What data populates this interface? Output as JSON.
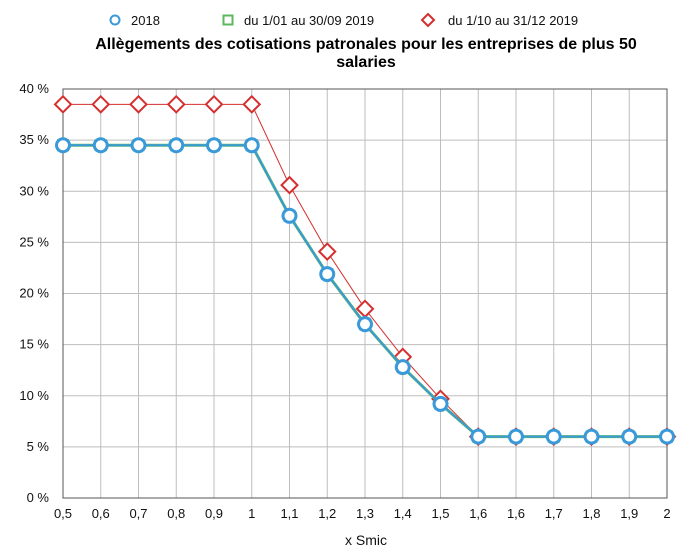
{
  "chart_data": {
    "type": "line",
    "title": "Allègements des cotisations patronales pour les entreprises de plus 50 salaries",
    "title_lines": [
      "Allègements des cotisations patronales pour les entreprises de plus 50",
      "salaries"
    ],
    "xlabel": "x Smic",
    "ylabel": "",
    "x": [
      0.5,
      0.6,
      0.7,
      0.8,
      0.9,
      1.0,
      1.1,
      1.2,
      1.3,
      1.4,
      1.5,
      1.6,
      1.6,
      1.7,
      1.8,
      1.9,
      2.0
    ],
    "x_tick_labels": [
      "0,5",
      "0,6",
      "0,7",
      "0,8",
      "0,9",
      "1",
      "1,1",
      "1,2",
      "1,3",
      "1,4",
      "1,5",
      "1,6",
      "1,6",
      "1,7",
      "1,8",
      "1,9",
      "2"
    ],
    "ylim": [
      0,
      40
    ],
    "y_ticks": [
      0,
      5,
      10,
      15,
      20,
      25,
      30,
      35,
      40
    ],
    "y_tick_labels": [
      "0 %",
      "5 %",
      "10 %",
      "15 %",
      "20 %",
      "25 %",
      "30 %",
      "35 %",
      "40 %"
    ],
    "grid": true,
    "legend_position": "top",
    "series": [
      {
        "name": "2018",
        "marker": "circle",
        "color": "#3a9ad9",
        "values": [
          34.5,
          34.5,
          34.5,
          34.5,
          34.5,
          34.5,
          27.6,
          21.9,
          17.0,
          12.8,
          9.2,
          6.0,
          6.0,
          6.0,
          6.0,
          6.0,
          6.0
        ]
      },
      {
        "name": "du 1/01 au 30/09 2019",
        "marker": "square",
        "color": "#5cb85c",
        "values": [
          34.5,
          34.5,
          34.5,
          34.5,
          34.5,
          34.5,
          27.6,
          21.9,
          17.0,
          12.8,
          9.2,
          6.0,
          6.0,
          6.0,
          6.0,
          6.0,
          6.0
        ]
      },
      {
        "name": "du 1/10 au 31/12 2019",
        "marker": "diamond",
        "color": "#d62f2f",
        "values": [
          38.5,
          38.5,
          38.5,
          38.5,
          38.5,
          38.5,
          30.6,
          24.1,
          18.5,
          13.8,
          9.7,
          6.0,
          6.0,
          6.0,
          6.0,
          6.0,
          6.0
        ]
      }
    ]
  }
}
